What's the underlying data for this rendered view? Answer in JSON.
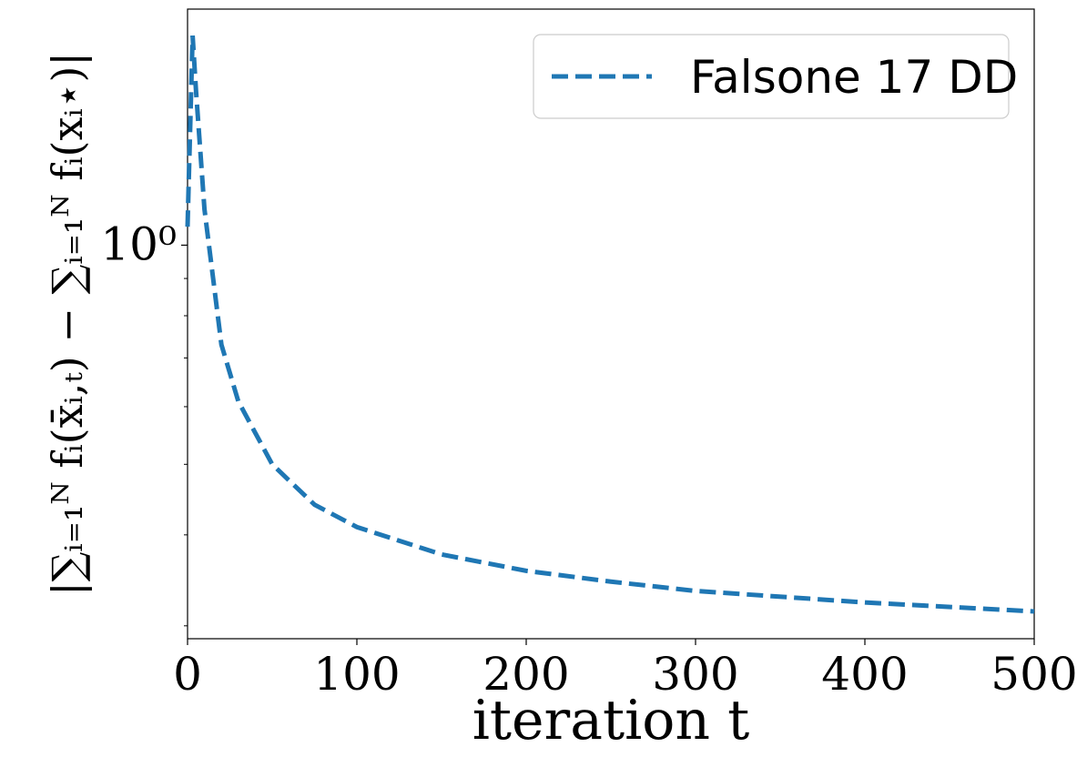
{
  "chart_data": {
    "type": "line",
    "xlabel": "iteration t",
    "ylabel": "|∑ᵢ₌₁ᴺ fᵢ(x̄ᵢ,ₜ) − ∑ᵢ₌₁ᴺ fᵢ(xᵢ⋆)|",
    "x": [
      0,
      3,
      5,
      10,
      20,
      30,
      50,
      75,
      100,
      150,
      200,
      250,
      300,
      400,
      500
    ],
    "series": [
      {
        "name": "Falsone 17 DD",
        "color": "#1f77b4",
        "values": [
          1.06,
          1.94,
          1.63,
          1.12,
          0.73,
          0.61,
          0.5,
          0.44,
          0.41,
          0.376,
          0.357,
          0.345,
          0.335,
          0.323,
          0.314
        ]
      }
    ],
    "xlim": [
      0,
      500
    ],
    "xticks": [
      0,
      100,
      200,
      300,
      400,
      500
    ],
    "ylim": [
      0.288,
      2.11
    ],
    "yticks": [
      {
        "value": 1,
        "label": "10⁰"
      }
    ],
    "minor_yticks": [
      0.3,
      0.4,
      0.5,
      0.6,
      0.7,
      0.8,
      0.9
    ],
    "log_y": true,
    "grid": false,
    "legend": "upper right"
  }
}
